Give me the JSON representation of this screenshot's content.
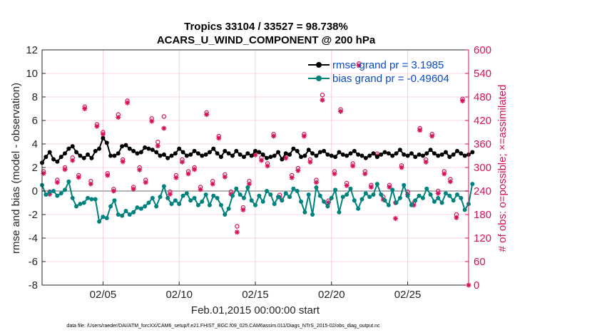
{
  "chart_data": {
    "type": "line",
    "title_line1": "Tropics 33104 / 33527 = 98.738%",
    "title_line2": "ACARS_U_WIND_COMPONENT @ 200 hPa",
    "ylabel_left": "rmse and bias (model - observation)",
    "ylabel_right": "# of obs: o=possible; ×=assimilated",
    "xlabel": "Feb.01,2015 00:00:00 start",
    "footer": "data file: /Users/raeder/DAI/ATM_forcXX/CAM6_setup/f.e21.FHIST_BGC.f09_025.CAM6assim.011/Diags_NTrS_2015-02/obs_diag_output.nc",
    "ylim_left": [
      -8,
      12
    ],
    "ylim_right": [
      0,
      600
    ],
    "xlim": [
      1,
      29
    ],
    "left_ticks": [
      "-8",
      "-6",
      "-4",
      "-2",
      "0",
      "2",
      "4",
      "6",
      "8",
      "10",
      "12"
    ],
    "right_ticks": [
      "0",
      "60",
      "120",
      "180",
      "240",
      "300",
      "360",
      "420",
      "480",
      "540",
      "600"
    ],
    "x_ticks": [
      {
        "value": 5,
        "label": "02/05"
      },
      {
        "value": 10,
        "label": "02/10"
      },
      {
        "value": 15,
        "label": "02/15"
      },
      {
        "value": 20,
        "label": "02/20"
      },
      {
        "value": 25,
        "label": "02/25"
      }
    ],
    "colors": {
      "rmse": "#000000",
      "bias": "#00827f",
      "obs": "#d6105a",
      "zero_line": "#b3b3b3",
      "legend_text": "#0a4ac8"
    },
    "legend": {
      "position": "top-right",
      "rmse_label": "rmse grand pr = 3.1985",
      "bias_label": "bias grand pr = -0.49604"
    },
    "x_start": 1.0,
    "x_step": 0.25,
    "series": [
      {
        "name": "rmse",
        "values": [
          2.4,
          2.9,
          3.3,
          2.7,
          2.5,
          2.9,
          3.2,
          3.6,
          3.8,
          3.3,
          3.0,
          2.8,
          3.1,
          2.8,
          3.4,
          3.6,
          4.5,
          4.1,
          3.0,
          3.0,
          3.2,
          3.8,
          3.9,
          3.6,
          3.4,
          3.2,
          3.3,
          3.7,
          3.6,
          3.5,
          3.3,
          3.0,
          3.1,
          2.8,
          3.0,
          3.2,
          3.6,
          3.3,
          3.0,
          3.1,
          3.4,
          3.2,
          3.0,
          3.1,
          3.3,
          3.6,
          3.2,
          2.9,
          3.4,
          3.2,
          3.0,
          3.4,
          3.1,
          2.9,
          3.2,
          3.0,
          3.4,
          3.3,
          3.1,
          2.8,
          2.9,
          3.0,
          3.3,
          2.7,
          3.2,
          3.1,
          3.6,
          3.4,
          2.9,
          3.0,
          3.5,
          3.2,
          3.0,
          3.3,
          3.4,
          3.1,
          3.0,
          2.9,
          3.3,
          3.1,
          3.0,
          3.2,
          3.4,
          3.1,
          3.0,
          2.8,
          3.0,
          3.2,
          2.9,
          3.1,
          3.3,
          3.2,
          3.0,
          3.2,
          3.5,
          3.1,
          3.0,
          3.2,
          2.9,
          3.1,
          3.0,
          3.2,
          3.5,
          3.2,
          3.0,
          3.1,
          3.3,
          2.9,
          3.1,
          3.4,
          3.2,
          3.0,
          3.1,
          3.3
        ]
      },
      {
        "name": "bias",
        "values": [
          0.5,
          -0.3,
          -0.1,
          0.0,
          -0.4,
          -0.2,
          0.1,
          0.8,
          -0.6,
          -1.3,
          -1.1,
          -1.0,
          -0.6,
          -0.7,
          -0.7,
          -2.6,
          -2.2,
          -2.3,
          -1.3,
          -0.8,
          -2.0,
          -2.1,
          -1.7,
          -2.0,
          -1.8,
          -1.4,
          -1.5,
          -1.3,
          -1.0,
          -0.6,
          -1.3,
          -0.5,
          0.4,
          -0.6,
          -1.1,
          -0.8,
          -1.1,
          -0.4,
          -0.2,
          -0.8,
          -0.6,
          -1.2,
          -0.9,
          -0.3,
          -1.2,
          -0.4,
          -0.6,
          -1.2,
          -2.0,
          -1.5,
          -0.4,
          0.2,
          -0.3,
          -0.6,
          0.3,
          -0.8,
          -1.2,
          -0.4,
          -0.9,
          0.0,
          -0.3,
          -1.1,
          -0.5,
          -0.8,
          -0.2,
          -0.5,
          0.2,
          0.0,
          -0.9,
          -1.8,
          -0.3,
          -2.0,
          0.3,
          -0.4,
          -0.9,
          -1.3,
          -0.6,
          0.1,
          -1.8,
          -0.5,
          -0.3,
          0.2,
          -0.8,
          -1.5,
          -0.7,
          -0.2,
          -0.5,
          -0.3,
          0.6,
          -0.3,
          -0.8,
          -1.2,
          0.1,
          -1.0,
          -0.6,
          0.5,
          -0.4,
          -1.2,
          -0.8,
          -0.4,
          -0.6,
          0.2,
          -0.3,
          -0.9,
          -0.6,
          -1.0,
          -0.2,
          -0.4,
          -0.8,
          -0.3,
          -0.6,
          -1.6,
          -1.1,
          0.6
        ]
      }
    ],
    "obs_possible": [
      {
        "x": 1.1,
        "v": 290
      },
      {
        "x": 1.5,
        "v": 238
      },
      {
        "x": 2.0,
        "v": 268
      },
      {
        "x": 2.5,
        "v": 300
      },
      {
        "x": 3.0,
        "v": 325
      },
      {
        "x": 3.4,
        "v": 280
      },
      {
        "x": 3.8,
        "v": 455
      },
      {
        "x": 4.2,
        "v": 265
      },
      {
        "x": 4.6,
        "v": 410
      },
      {
        "x": 5.0,
        "v": 390
      },
      {
        "x": 5.3,
        "v": 285
      },
      {
        "x": 5.7,
        "v": 245
      },
      {
        "x": 6.0,
        "v": 435
      },
      {
        "x": 6.3,
        "v": 320
      },
      {
        "x": 6.6,
        "v": 470
      },
      {
        "x": 7.0,
        "v": 250
      },
      {
        "x": 7.4,
        "v": 300
      },
      {
        "x": 7.8,
        "v": 268
      },
      {
        "x": 8.2,
        "v": 425
      },
      {
        "x": 8.6,
        "v": 365
      },
      {
        "x": 9.0,
        "v": 430
      },
      {
        "x": 9.4,
        "v": 238
      },
      {
        "x": 9.8,
        "v": 280
      },
      {
        "x": 10.2,
        "v": 320
      },
      {
        "x": 10.6,
        "v": 290
      },
      {
        "x": 11.0,
        "v": 300
      },
      {
        "x": 11.4,
        "v": 250
      },
      {
        "x": 11.8,
        "v": 440
      },
      {
        "x": 12.2,
        "v": 265
      },
      {
        "x": 12.6,
        "v": 380
      },
      {
        "x": 13.0,
        "v": 282
      },
      {
        "x": 13.4,
        "v": 238
      },
      {
        "x": 13.8,
        "v": 150
      },
      {
        "x": 14.2,
        "v": 198
      },
      {
        "x": 14.6,
        "v": 265
      },
      {
        "x": 15.0,
        "v": 338
      },
      {
        "x": 15.4,
        "v": 325
      },
      {
        "x": 15.8,
        "v": 310
      },
      {
        "x": 16.2,
        "v": 385
      },
      {
        "x": 16.6,
        "v": 230
      },
      {
        "x": 17.0,
        "v": 330
      },
      {
        "x": 17.4,
        "v": 280
      },
      {
        "x": 17.8,
        "v": 298
      },
      {
        "x": 18.2,
        "v": 385
      },
      {
        "x": 18.6,
        "v": 320
      },
      {
        "x": 19.0,
        "v": 268
      },
      {
        "x": 19.4,
        "v": 485
      },
      {
        "x": 19.8,
        "v": 215
      },
      {
        "x": 20.2,
        "v": 290
      },
      {
        "x": 20.6,
        "v": 448
      },
      {
        "x": 21.0,
        "v": 260
      },
      {
        "x": 21.4,
        "v": 310
      },
      {
        "x": 21.8,
        "v": 565
      },
      {
        "x": 22.2,
        "v": 290
      },
      {
        "x": 22.6,
        "v": 255
      },
      {
        "x": 23.0,
        "v": 335
      },
      {
        "x": 23.4,
        "v": 225
      },
      {
        "x": 23.8,
        "v": 255
      },
      {
        "x": 24.2,
        "v": 210
      },
      {
        "x": 24.6,
        "v": 305
      },
      {
        "x": 25.0,
        "v": 238
      },
      {
        "x": 25.4,
        "v": 210
      },
      {
        "x": 25.8,
        "v": 400
      },
      {
        "x": 26.2,
        "v": 320
      },
      {
        "x": 26.6,
        "v": 385
      },
      {
        "x": 27.0,
        "v": 240
      },
      {
        "x": 27.4,
        "v": 290
      },
      {
        "x": 27.8,
        "v": 270
      },
      {
        "x": 28.2,
        "v": 180
      },
      {
        "x": 28.6,
        "v": 475
      }
    ],
    "obs_assimilated": [
      {
        "x": 1.1,
        "v": 285
      },
      {
        "x": 1.5,
        "v": 232
      },
      {
        "x": 2.0,
        "v": 262
      },
      {
        "x": 2.5,
        "v": 295
      },
      {
        "x": 3.0,
        "v": 318
      },
      {
        "x": 3.4,
        "v": 275
      },
      {
        "x": 3.8,
        "v": 450
      },
      {
        "x": 4.2,
        "v": 258
      },
      {
        "x": 4.6,
        "v": 405
      },
      {
        "x": 5.0,
        "v": 385
      },
      {
        "x": 5.3,
        "v": 280
      },
      {
        "x": 5.7,
        "v": 240
      },
      {
        "x": 6.0,
        "v": 428
      },
      {
        "x": 6.3,
        "v": 315
      },
      {
        "x": 6.6,
        "v": 465
      },
      {
        "x": 7.0,
        "v": 245
      },
      {
        "x": 7.4,
        "v": 294
      },
      {
        "x": 7.8,
        "v": 262
      },
      {
        "x": 8.2,
        "v": 418
      },
      {
        "x": 8.6,
        "v": 355
      },
      {
        "x": 9.0,
        "v": 400
      },
      {
        "x": 9.4,
        "v": 232
      },
      {
        "x": 9.8,
        "v": 274
      },
      {
        "x": 10.2,
        "v": 314
      },
      {
        "x": 10.6,
        "v": 284
      },
      {
        "x": 11.0,
        "v": 295
      },
      {
        "x": 11.4,
        "v": 244
      },
      {
        "x": 11.8,
        "v": 435
      },
      {
        "x": 12.2,
        "v": 258
      },
      {
        "x": 12.6,
        "v": 375
      },
      {
        "x": 13.0,
        "v": 276
      },
      {
        "x": 13.4,
        "v": 232
      },
      {
        "x": 13.8,
        "v": 135
      },
      {
        "x": 14.2,
        "v": 192
      },
      {
        "x": 14.6,
        "v": 258
      },
      {
        "x": 15.0,
        "v": 332
      },
      {
        "x": 15.4,
        "v": 318
      },
      {
        "x": 15.8,
        "v": 304
      },
      {
        "x": 16.2,
        "v": 380
      },
      {
        "x": 16.6,
        "v": 224
      },
      {
        "x": 17.0,
        "v": 324
      },
      {
        "x": 17.4,
        "v": 274
      },
      {
        "x": 17.8,
        "v": 292
      },
      {
        "x": 18.2,
        "v": 380
      },
      {
        "x": 18.6,
        "v": 314
      },
      {
        "x": 19.0,
        "v": 262
      },
      {
        "x": 19.4,
        "v": 472
      },
      {
        "x": 19.8,
        "v": 210
      },
      {
        "x": 20.2,
        "v": 284
      },
      {
        "x": 20.6,
        "v": 443
      },
      {
        "x": 21.0,
        "v": 254
      },
      {
        "x": 21.4,
        "v": 304
      },
      {
        "x": 21.8,
        "v": 560
      },
      {
        "x": 22.2,
        "v": 284
      },
      {
        "x": 22.6,
        "v": 250
      },
      {
        "x": 23.0,
        "v": 330
      },
      {
        "x": 23.4,
        "v": 218
      },
      {
        "x": 23.8,
        "v": 250
      },
      {
        "x": 24.2,
        "v": 170
      },
      {
        "x": 24.6,
        "v": 300
      },
      {
        "x": 25.0,
        "v": 232
      },
      {
        "x": 25.4,
        "v": 204
      },
      {
        "x": 25.8,
        "v": 395
      },
      {
        "x": 26.2,
        "v": 314
      },
      {
        "x": 26.6,
        "v": 380
      },
      {
        "x": 27.0,
        "v": 234
      },
      {
        "x": 27.4,
        "v": 284
      },
      {
        "x": 27.8,
        "v": 264
      },
      {
        "x": 28.2,
        "v": 172
      },
      {
        "x": 28.6,
        "v": 470
      },
      {
        "x": 29.0,
        "v": 0
      }
    ]
  }
}
